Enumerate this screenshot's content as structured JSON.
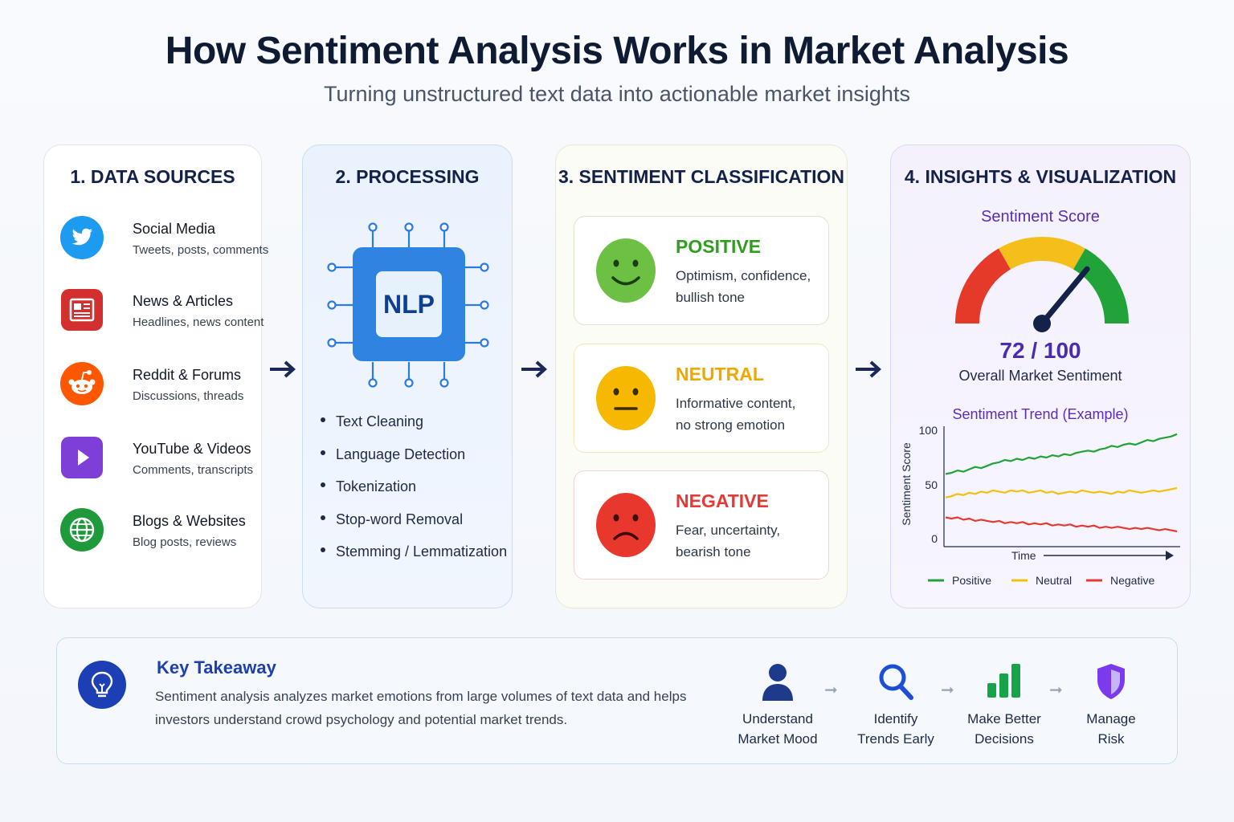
{
  "header": {
    "title": "How Sentiment Analysis Works in Market Analysis",
    "subtitle": "Turning unstructured text data into actionable market insights"
  },
  "data_sources": {
    "heading": "1. DATA SOURCES",
    "items": [
      {
        "title": "Social Media",
        "subtitle": "Tweets, posts, comments",
        "icon": "twitter-bird-icon",
        "color": "#1d9bf0"
      },
      {
        "title": "News & Articles",
        "subtitle": "Headlines, news content",
        "icon": "newspaper-icon",
        "color": "#d32f2f"
      },
      {
        "title": "Reddit & Forums",
        "subtitle": "Discussions, threads",
        "icon": "reddit-alien-icon",
        "color": "#ff5700"
      },
      {
        "title": "YouTube & Videos",
        "subtitle": "Comments, transcripts",
        "icon": "play-icon",
        "color": "#7e3fd9"
      },
      {
        "title": "Blogs & Websites",
        "subtitle": "Blog posts, reviews",
        "icon": "globe-icon",
        "color": "#1e9a3a"
      }
    ]
  },
  "processing": {
    "heading": "2. PROCESSING",
    "chip_label": "NLP",
    "steps": [
      "Text Cleaning",
      "Language Detection",
      "Tokenization",
      "Stop-word Removal",
      "Stemming / Lemmatization"
    ]
  },
  "classification": {
    "heading": "3. SENTIMENT CLASSIFICATION",
    "cards": [
      {
        "label": "POSITIVE",
        "line1": "Optimism, confidence,",
        "line2": "bullish tone",
        "color": "#2f9e1f",
        "face_color": "#6cc043",
        "mood": "smile"
      },
      {
        "label": "NEUTRAL",
        "line1": "Informative content,",
        "line2": "no strong emotion",
        "color": "#f0a800",
        "face_color": "#f6b800",
        "mood": "flat"
      },
      {
        "label": "NEGATIVE",
        "line1": "Fear, uncertainty,",
        "line2": "bearish tone",
        "color": "#e53935",
        "face_color": "#e8382e",
        "mood": "frown"
      }
    ]
  },
  "insights": {
    "heading": "4. INSIGHTS & VISUALIZATION",
    "gauge_title": "Sentiment Score",
    "score_text": "72 / 100",
    "score_label": "Overall Market Sentiment",
    "trend_title": "Sentiment Trend (Example)",
    "ylabel": "Sentiment Score",
    "xlabel": "Time",
    "yticks": [
      "100",
      "50",
      "0"
    ],
    "legend": [
      "Positive",
      "Neutral",
      "Negative"
    ]
  },
  "chart_data": {
    "type": "line",
    "title": "Sentiment Trend (Example)",
    "xlabel": "Time",
    "ylabel": "Sentiment Score",
    "ylim": [
      0,
      100
    ],
    "legend_position": "bottom",
    "gauge": {
      "value": 72,
      "max": 100
    },
    "series": [
      {
        "name": "Positive",
        "color": "#22a33a",
        "values": [
          62,
          63,
          65,
          64,
          66,
          68,
          67,
          69,
          71,
          72,
          74,
          73,
          75,
          74,
          76,
          75,
          77,
          76,
          78,
          77,
          79,
          78,
          80,
          81,
          82,
          81,
          83,
          84,
          86,
          85,
          87,
          88,
          87,
          89,
          91,
          90,
          92,
          93,
          94,
          96
        ]
      },
      {
        "name": "Neutral",
        "color": "#f2c10f",
        "values": [
          42,
          43,
          45,
          44,
          46,
          45,
          47,
          46,
          48,
          47,
          46,
          48,
          47,
          48,
          46,
          47,
          48,
          46,
          47,
          45,
          46,
          47,
          46,
          48,
          47,
          46,
          47,
          46,
          45,
          47,
          46,
          48,
          47,
          46,
          47,
          48,
          47,
          48,
          49,
          50
        ]
      },
      {
        "name": "Negative",
        "color": "#e53935",
        "values": [
          25,
          24,
          25,
          23,
          24,
          22,
          23,
          22,
          21,
          22,
          20,
          21,
          20,
          21,
          19,
          20,
          19,
          20,
          18,
          19,
          18,
          19,
          17,
          18,
          17,
          18,
          16,
          17,
          16,
          17,
          16,
          15,
          16,
          15,
          16,
          15,
          14,
          15,
          14,
          13
        ]
      }
    ]
  },
  "takeaway": {
    "title": "Key Takeaway",
    "line1": "Sentiment analysis analyzes market emotions from large volumes of text data and helps",
    "line2": "investors understand crowd psychology and potential market trends.",
    "steps": [
      {
        "l1": "Understand",
        "l2": "Market Mood",
        "icon": "person-icon"
      },
      {
        "l1": "Identify",
        "l2": "Trends Early",
        "icon": "magnifier-icon"
      },
      {
        "l1": "Make Better",
        "l2": "Decisions",
        "icon": "bar-chart-icon"
      },
      {
        "l1": "Manage",
        "l2": "Risk",
        "icon": "shield-icon"
      }
    ]
  },
  "colors": {
    "navy": "#14224a",
    "arrow": "#1b2a55",
    "purple": "#5b2db8",
    "blue": "#1e40af"
  }
}
